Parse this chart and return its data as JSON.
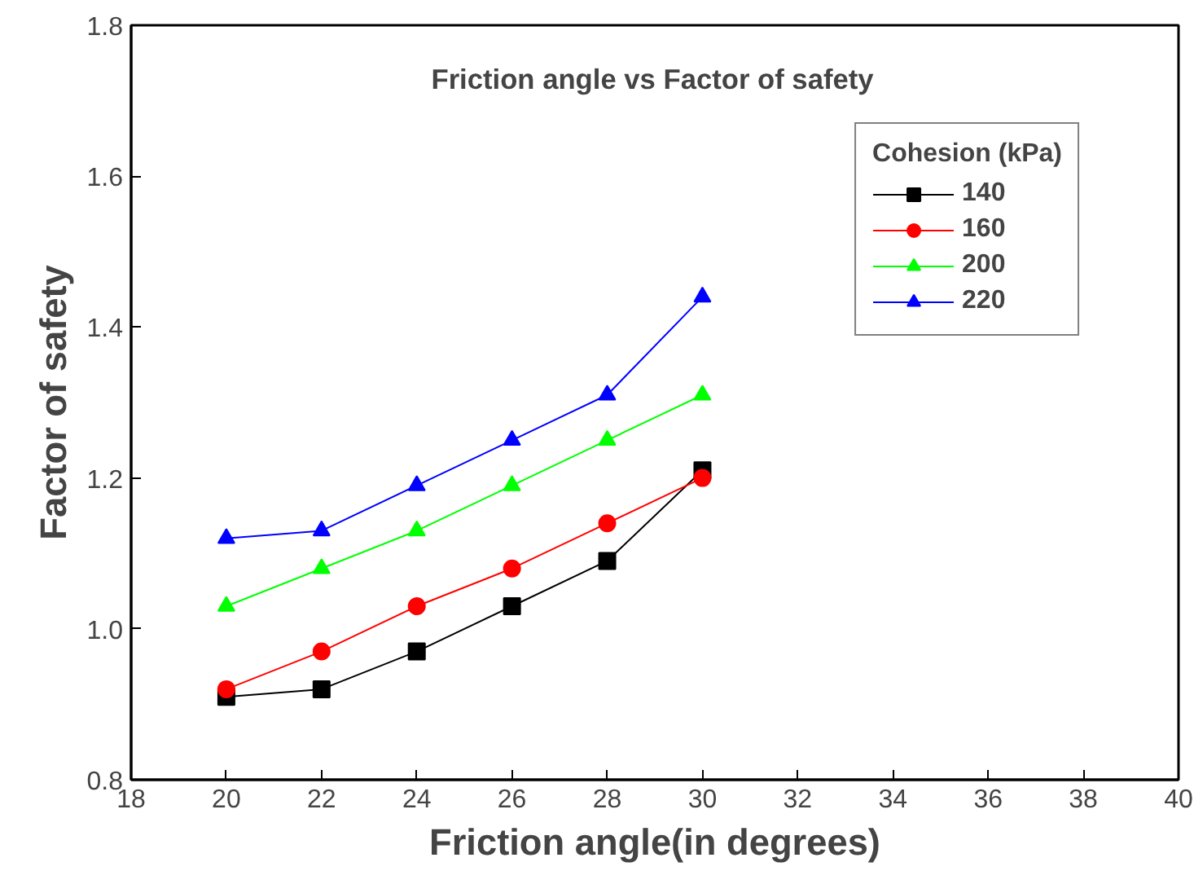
{
  "chart_data": {
    "type": "line",
    "title": "Friction angle vs Factor of safety",
    "xlabel": "Friction angle(in degrees)",
    "ylabel": "Factor of safety",
    "legend_title": "Cohesion (kPa)",
    "legend": "top right",
    "grid": false,
    "x": [
      20,
      22,
      24,
      26,
      28,
      30
    ],
    "xlim": [
      18,
      40
    ],
    "xticks": [
      18,
      20,
      22,
      24,
      26,
      28,
      30,
      32,
      34,
      36,
      38,
      40
    ],
    "ylim": [
      0.8,
      1.8
    ],
    "yticks": [
      {
        "value": 0.8,
        "label": "0.8"
      },
      {
        "value": 1.0,
        "label": "1.0"
      },
      {
        "value": 1.2,
        "label": "1.2"
      },
      {
        "value": 1.4,
        "label": "1.4"
      },
      {
        "value": 1.6,
        "label": "1.6"
      },
      {
        "value": 1.8,
        "label": "1.8"
      }
    ],
    "series": [
      {
        "name": "140",
        "color": "#000000",
        "marker": "square",
        "values": [
          0.91,
          0.92,
          0.97,
          1.03,
          1.09,
          1.21
        ]
      },
      {
        "name": "160",
        "color": "#ff0000",
        "marker": "circle",
        "values": [
          0.92,
          0.97,
          1.03,
          1.08,
          1.14,
          1.2
        ]
      },
      {
        "name": "200",
        "color": "#00ff00",
        "marker": "triangle",
        "values": [
          1.03,
          1.08,
          1.13,
          1.19,
          1.25,
          1.31
        ]
      },
      {
        "name": "220",
        "color": "#0000ff",
        "marker": "triangle",
        "values": [
          1.12,
          1.13,
          1.19,
          1.25,
          1.31,
          1.44
        ]
      }
    ]
  }
}
